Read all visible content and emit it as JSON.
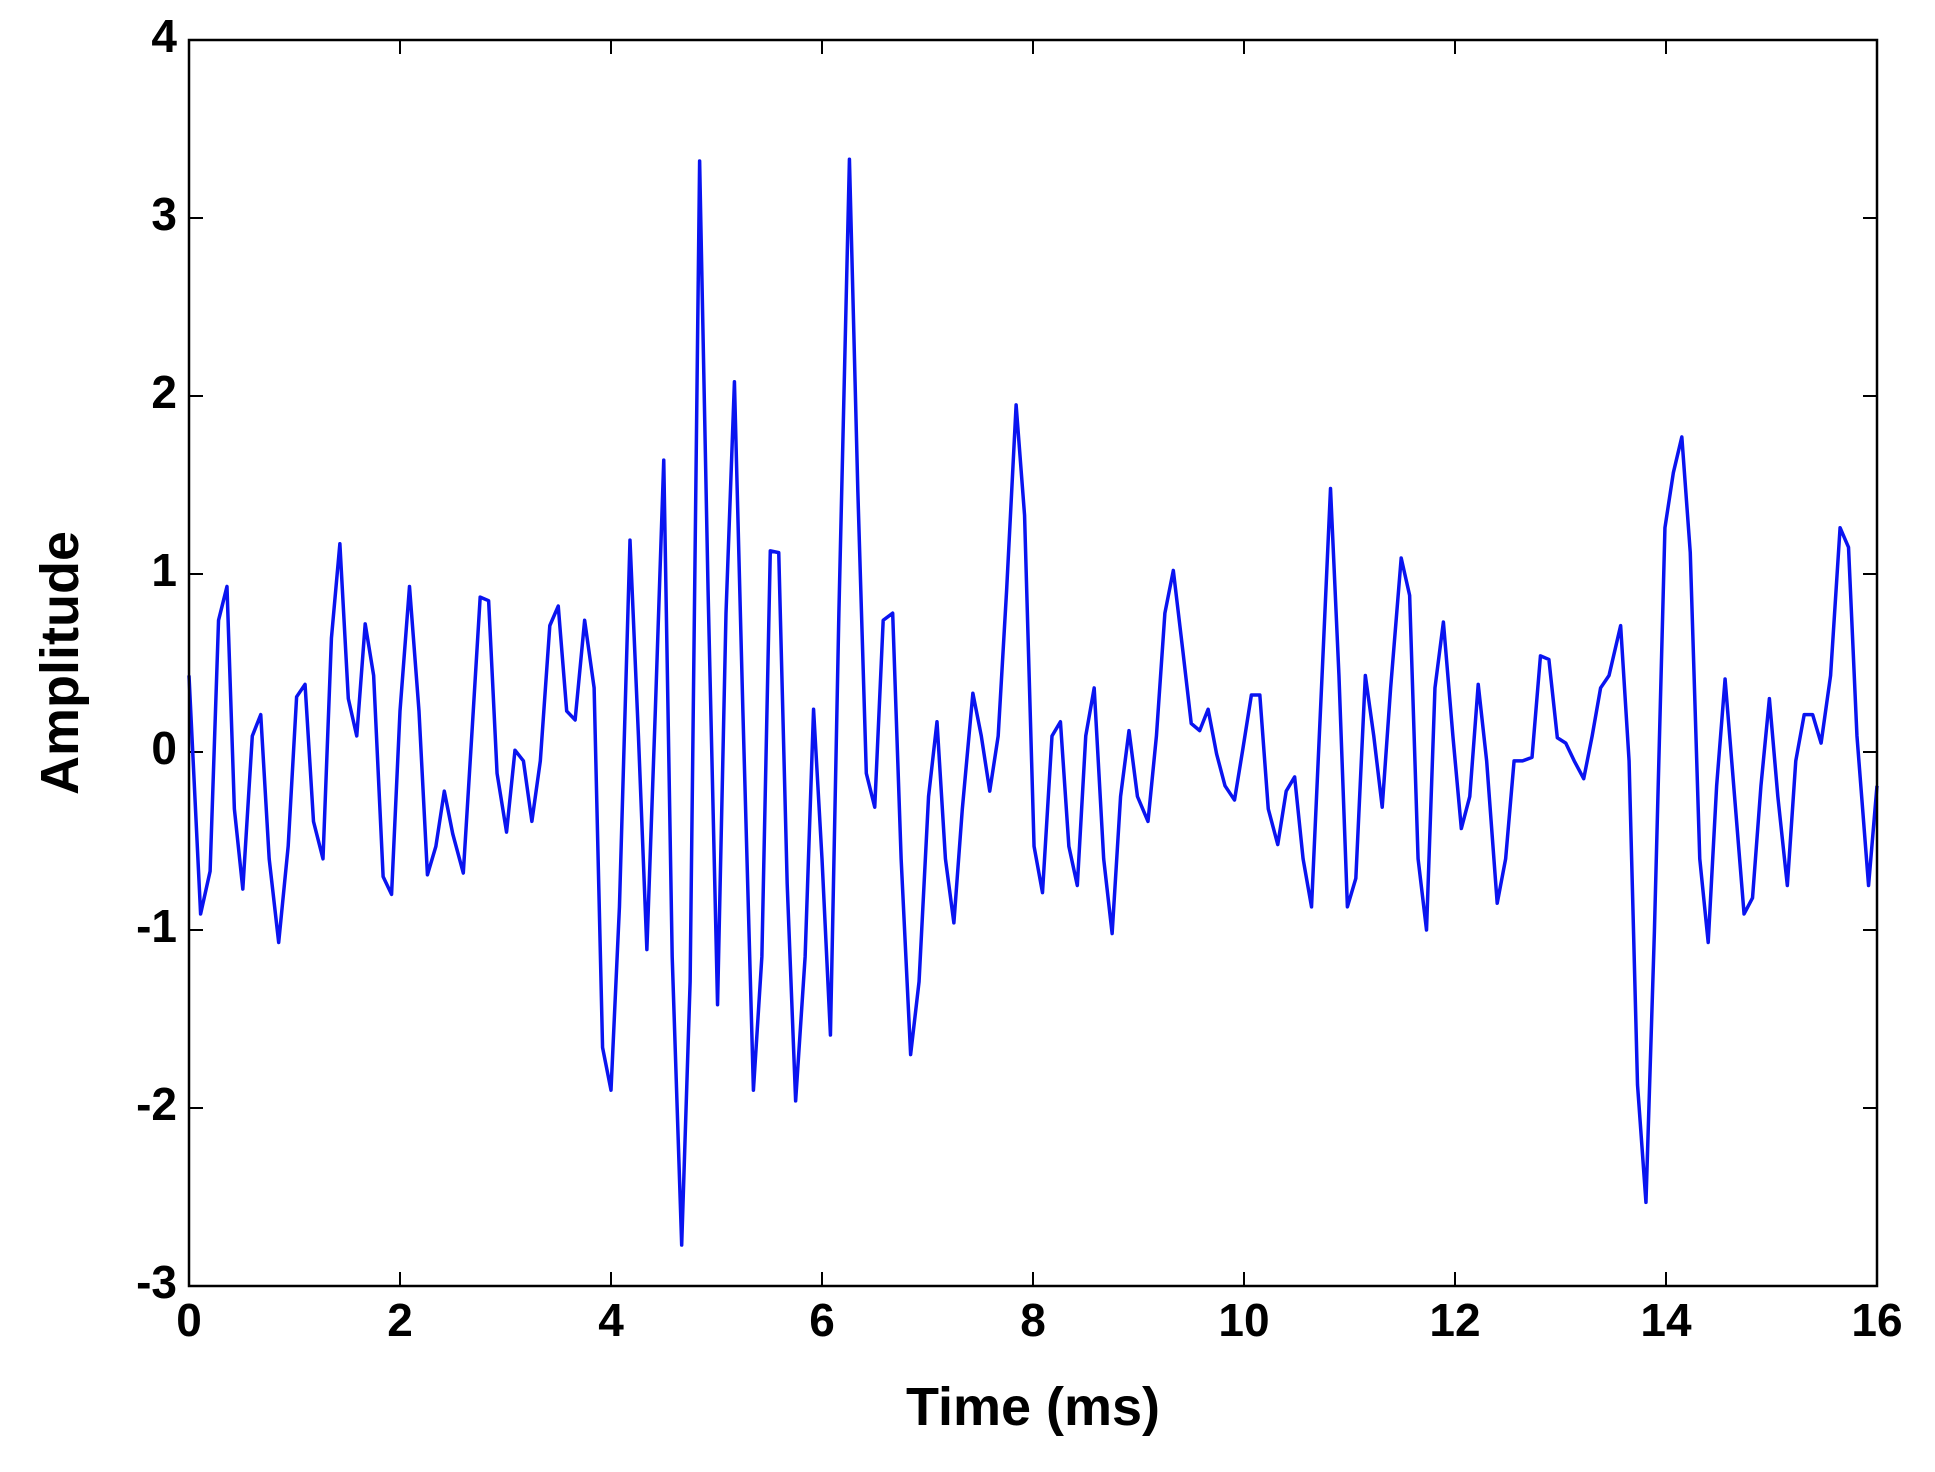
{
  "chart_data": {
    "type": "line",
    "xlabel": "Time (ms)",
    "ylabel": "Amplitude",
    "xlim": [
      0,
      16
    ],
    "xticks": [
      0,
      2,
      4,
      6,
      8,
      10,
      12,
      14,
      16
    ],
    "ylim": [
      -3,
      4
    ],
    "yticks": [
      -3,
      -2,
      -1,
      0,
      1,
      2,
      3,
      4
    ],
    "grid": false,
    "x": [
      0,
      0.11,
      0.2,
      0.28,
      0.36,
      0.43,
      0.51,
      0.6,
      0.68,
      0.76,
      0.85,
      0.94,
      1.02,
      1.1,
      1.18,
      1.27,
      1.35,
      1.43,
      1.51,
      1.59,
      1.67,
      1.75,
      1.84,
      1.92,
      2.0,
      2.09,
      2.18,
      2.26,
      2.34,
      2.42,
      2.5,
      2.6,
      2.68,
      2.76,
      2.84,
      2.92,
      3.01,
      3.09,
      3.17,
      3.25,
      3.33,
      3.42,
      3.5,
      3.58,
      3.66,
      3.75,
      3.84,
      3.92,
      4.0,
      4.08,
      4.18,
      4.26,
      4.34,
      4.42,
      4.5,
      4.58,
      4.67,
      4.75,
      4.84,
      4.92,
      5.01,
      5.09,
      5.17,
      5.25,
      5.35,
      5.43,
      5.51,
      5.59,
      5.67,
      5.75,
      5.84,
      5.92,
      6.0,
      6.08,
      6.16,
      6.26,
      6.34,
      6.42,
      6.5,
      6.58,
      6.67,
      6.75,
      6.84,
      6.92,
      7.01,
      7.09,
      7.17,
      7.25,
      7.33,
      7.43,
      7.51,
      7.59,
      7.67,
      7.75,
      7.84,
      7.92,
      8.01,
      8.09,
      8.18,
      8.26,
      8.34,
      8.42,
      8.5,
      8.58,
      8.67,
      8.75,
      8.83,
      8.91,
      8.99,
      9.09,
      9.17,
      9.25,
      9.33,
      9.42,
      9.5,
      9.58,
      9.66,
      9.74,
      9.82,
      9.91,
      9.99,
      10.07,
      10.15,
      10.23,
      10.32,
      10.4,
      10.48,
      10.56,
      10.64,
      10.74,
      10.82,
      10.9,
      10.98,
      11.06,
      11.15,
      11.23,
      11.31,
      11.39,
      11.49,
      11.57,
      11.65,
      11.73,
      11.81,
      11.89,
      11.98,
      12.06,
      12.14,
      12.22,
      12.3,
      12.4,
      12.48,
      12.56,
      12.64,
      12.73,
      12.81,
      12.89,
      12.97,
      13.05,
      13.13,
      13.22,
      13.3,
      13.38,
      13.46,
      13.57,
      13.65,
      13.73,
      13.81,
      13.89,
      13.99,
      14.07,
      14.15,
      14.23,
      14.32,
      14.4,
      14.48,
      14.56,
      14.65,
      14.74,
      14.82,
      14.9,
      14.98,
      15.06,
      15.15,
      15.23,
      15.31,
      15.39,
      15.47,
      15.56,
      15.65,
      15.73,
      15.81,
      15.92,
      16.0
    ],
    "series": [
      {
        "color": "#0a14f0",
        "values": [
          0.43,
          -0.91,
          -0.67,
          0.74,
          0.93,
          -0.32,
          -0.77,
          0.09,
          0.21,
          -0.6,
          -1.07,
          -0.53,
          0.31,
          0.38,
          -0.39,
          -0.6,
          0.64,
          1.17,
          0.3,
          0.09,
          0.72,
          0.43,
          -0.7,
          -0.8,
          0.23,
          0.93,
          0.23,
          -0.69,
          -0.53,
          -0.22,
          -0.46,
          -0.68,
          0.09,
          0.87,
          0.85,
          -0.12,
          -0.45,
          0.01,
          -0.05,
          -0.39,
          -0.05,
          0.71,
          0.82,
          0.23,
          0.18,
          0.74,
          0.36,
          -1.66,
          -1.9,
          -0.87,
          1.19,
          0.09,
          -1.11,
          0.23,
          1.64,
          -1.15,
          -2.77,
          -1.29,
          3.32,
          0.91,
          -1.42,
          0.78,
          2.08,
          0.23,
          -1.9,
          -1.15,
          1.13,
          1.12,
          -0.74,
          -1.96,
          -1.15,
          0.24,
          -0.6,
          -1.59,
          0.78,
          3.33,
          1.46,
          -0.12,
          -0.31,
          0.74,
          0.78,
          -0.6,
          -1.7,
          -1.29,
          -0.25,
          0.17,
          -0.6,
          -0.96,
          -0.32,
          0.33,
          0.09,
          -0.22,
          0.09,
          0.91,
          1.95,
          1.33,
          -0.53,
          -0.79,
          0.09,
          0.17,
          -0.53,
          -0.75,
          0.09,
          0.36,
          -0.6,
          -1.02,
          -0.25,
          0.12,
          -0.25,
          -0.39,
          0.09,
          0.78,
          1.02,
          0.57,
          0.16,
          0.12,
          0.24,
          -0.01,
          -0.19,
          -0.27,
          0.02,
          0.32,
          0.32,
          -0.32,
          -0.52,
          -0.22,
          -0.14,
          -0.6,
          -0.87,
          0.43,
          1.48,
          0.43,
          -0.87,
          -0.71,
          0.43,
          0.09,
          -0.31,
          0.36,
          1.09,
          0.88,
          -0.6,
          -1.0,
          0.36,
          0.73,
          0.09,
          -0.43,
          -0.25,
          0.38,
          -0.05,
          -0.85,
          -0.6,
          -0.05,
          -0.05,
          -0.03,
          0.54,
          0.52,
          0.08,
          0.05,
          -0.05,
          -0.15,
          0.09,
          0.36,
          0.43,
          0.71,
          -0.05,
          -1.87,
          -2.53,
          -1.01,
          1.26,
          1.57,
          1.77,
          1.12,
          -0.6,
          -1.07,
          -0.19,
          0.41,
          -0.25,
          -0.91,
          -0.82,
          -0.19,
          0.3,
          -0.25,
          -0.75,
          -0.05,
          0.21,
          0.21,
          0.05,
          0.43,
          1.26,
          1.15,
          0.09,
          -0.75,
          -0.19
        ]
      }
    ]
  }
}
